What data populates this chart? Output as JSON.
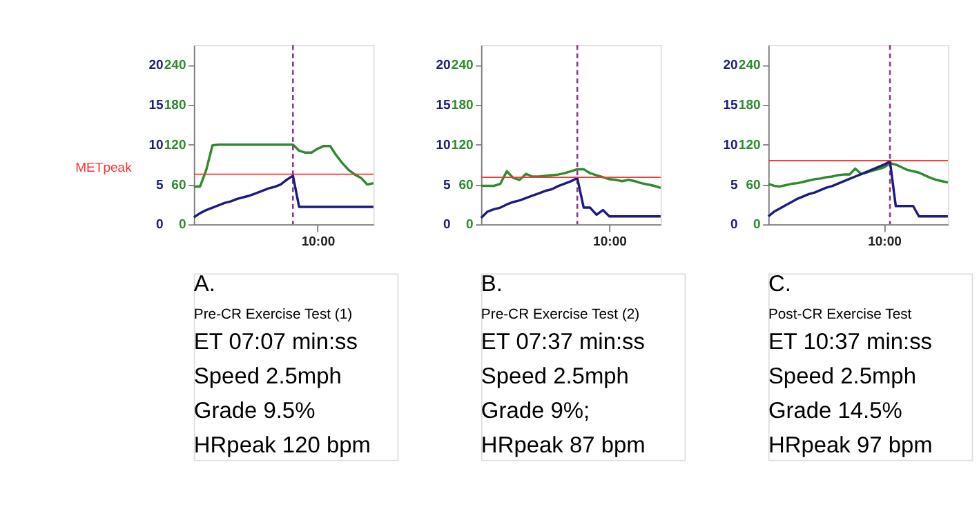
{
  "chart_data": [
    {
      "type": "line",
      "categories": [
        null,
        null,
        null,
        null,
        null,
        null,
        null,
        null,
        null,
        null,
        null,
        null,
        null,
        null,
        null,
        null,
        null,
        null,
        null,
        null,
        "10:00",
        null,
        null,
        null,
        null,
        null,
        null,
        null,
        null,
        null
      ],
      "ylim": [
        0,
        270
      ],
      "yticks": [
        0,
        60,
        120,
        180,
        240
      ],
      "y2lim": [
        0,
        22.5
      ],
      "y2ticks": [
        0,
        5,
        10,
        15,
        20
      ],
      "grid": false,
      "marker": "none",
      "series": [
        {
          "color": "#2e8b2e",
          "values": [
            57,
            57,
            82,
            119,
            120,
            120,
            120,
            120,
            120,
            120,
            120,
            120,
            120,
            120,
            120,
            120,
            120,
            111,
            108,
            108,
            114,
            118,
            118,
            104,
            92,
            82,
            75,
            70,
            60,
            62
          ]
        },
        {
          "color": "#1c1c80",
          "axis": "y2",
          "values": [
            0.9,
            1.4,
            1.8,
            2.1,
            2.4,
            2.7,
            2.9,
            3.2,
            3.4,
            3.6,
            3.9,
            4.2,
            4.5,
            4.7,
            5.0,
            5.6,
            6.1,
            2.2,
            2.2,
            2.2,
            2.2,
            2.2,
            2.2,
            2.2,
            2.2,
            2.2,
            2.2,
            2.2,
            2.2,
            2.2
          ]
        }
      ],
      "ref_lines": [
        {
          "axis": "y2",
          "value": 6.3,
          "label": "METpeak",
          "color": "#ff3030"
        }
      ],
      "annotations": [
        "A.",
        "Pre-CR Exercise Test (1)",
        "ET 07:07 min:ss",
        "Speed 2.5mph",
        "Grade 9.5%",
        "HRpeak 120 bpm"
      ]
    },
    {
      "type": "line",
      "categories": [
        null,
        null,
        null,
        null,
        null,
        null,
        null,
        null,
        null,
        null,
        null,
        null,
        null,
        null,
        null,
        null,
        null,
        null,
        null,
        null,
        "10:00",
        null,
        null,
        null,
        null,
        null,
        null,
        null,
        null
      ],
      "ylim": [
        0,
        270
      ],
      "yticks": [
        0,
        60,
        120,
        180,
        240
      ],
      "y2lim": [
        0,
        22.5
      ],
      "y2ticks": [
        0,
        5,
        10,
        15,
        20
      ],
      "grid": false,
      "marker": "none",
      "series": [
        {
          "color": "#2e8b2e",
          "values": [
            58,
            58,
            58,
            61,
            80,
            70,
            67,
            76,
            72,
            72,
            73,
            74,
            75,
            77,
            80,
            83,
            83,
            77,
            74,
            71,
            68,
            67,
            65,
            67,
            65,
            62,
            60,
            58,
            55
          ]
        },
        {
          "color": "#1c1c80",
          "axis": "y2",
          "values": [
            0.8,
            1.6,
            1.9,
            2.1,
            2.5,
            2.8,
            3.0,
            3.3,
            3.6,
            3.9,
            4.2,
            4.4,
            4.8,
            5.1,
            5.4,
            5.8,
            2.1,
            2.1,
            1.2,
            1.8,
            1.0,
            1.0,
            1.0,
            1.0,
            1.0,
            1.0,
            1.0,
            1.0,
            1.0
          ]
        }
      ],
      "ref_lines": [
        {
          "axis": "y2",
          "value": 5.9,
          "color": "#ff3030"
        }
      ],
      "annotations": [
        "B.",
        "Pre-CR Exercise Test (2)",
        "ET 07:37 min:ss",
        "Speed 2.5mph",
        "Grade 9%;",
        "HRpeak 87 bpm"
      ]
    },
    {
      "type": "line",
      "categories": [
        null,
        null,
        null,
        null,
        null,
        null,
        null,
        null,
        null,
        null,
        null,
        null,
        null,
        null,
        null,
        null,
        null,
        null,
        null,
        null,
        "10:00",
        null,
        null,
        null,
        null,
        null,
        null,
        null,
        null,
        null,
        null,
        null
      ],
      "ylim": [
        0,
        270
      ],
      "yticks": [
        0,
        60,
        120,
        180,
        240
      ],
      "y2lim": [
        0,
        22.5
      ],
      "y2ticks": [
        0,
        5,
        10,
        15,
        20
      ],
      "grid": false,
      "marker": "none",
      "series": [
        {
          "color": "#2e8b2e",
          "values": [
            61,
            58,
            57,
            59,
            61,
            62,
            64,
            66,
            68,
            69,
            71,
            72,
            74,
            75,
            75,
            84,
            76,
            78,
            81,
            83,
            86,
            92,
            90,
            86,
            82,
            80,
            78,
            74,
            70,
            67,
            65,
            63
          ]
        },
        {
          "color": "#1c1c80",
          "axis": "y2",
          "values": [
            1.0,
            1.6,
            2.0,
            2.4,
            2.8,
            3.2,
            3.5,
            3.8,
            4.0,
            4.3,
            4.6,
            4.8,
            5.1,
            5.4,
            5.7,
            6.0,
            6.3,
            6.6,
            6.9,
            7.2,
            7.5,
            7.9,
            2.3,
            2.3,
            2.3,
            2.3,
            1.0,
            1.0,
            1.0,
            1.0,
            1.0,
            1.0
          ]
        }
      ],
      "ref_lines": [
        {
          "axis": "y2",
          "value": 8.0,
          "color": "#ff3030"
        }
      ],
      "annotations": [
        "C.",
        "Post-CR Exercise Test",
        "ET 10:37 min:ss",
        "Speed 2.5mph",
        "Grade 14.5%",
        "HRpeak 97 bpm"
      ]
    }
  ]
}
